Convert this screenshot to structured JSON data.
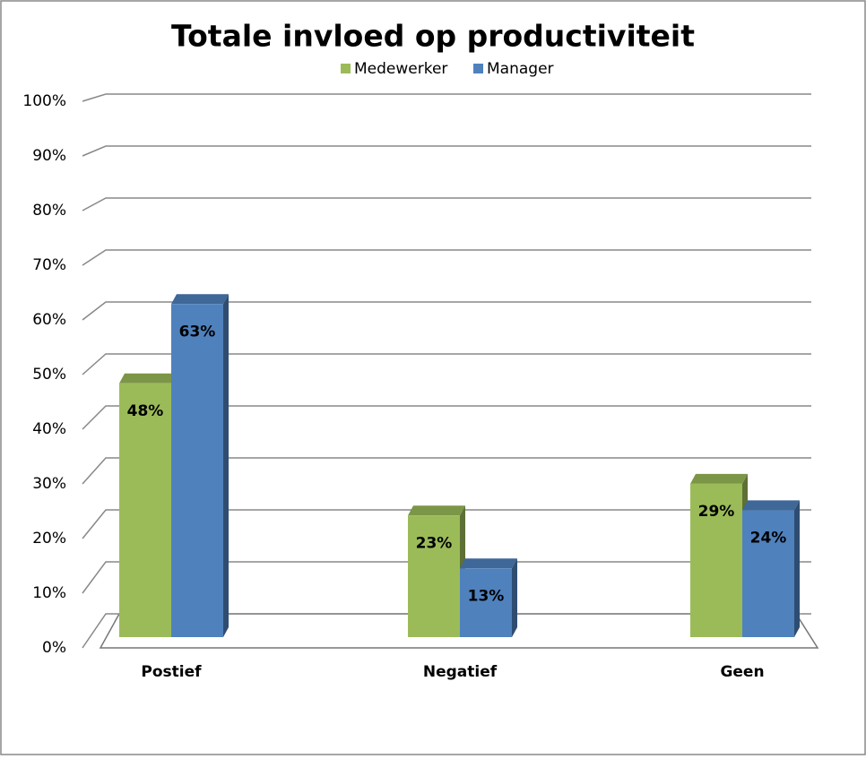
{
  "chart_data": {
    "type": "bar3d",
    "title": "Totale invloed op productiviteit",
    "categories": [
      "Postief",
      "Negatief",
      "Geen"
    ],
    "series": [
      {
        "name": "Medewerker",
        "color": "#9bbb59",
        "values": [
          48,
          23,
          29
        ],
        "value_labels": [
          "48%",
          "23%",
          "29%"
        ]
      },
      {
        "name": "Manager",
        "color": "#4f81bd",
        "values": [
          63,
          13,
          24
        ],
        "value_labels": [
          "63%",
          "13%",
          "24%"
        ]
      }
    ],
    "ylim": [
      0,
      100
    ],
    "yticks": [
      {
        "value": 0,
        "label": "0%"
      },
      {
        "value": 10,
        "label": "10%"
      },
      {
        "value": 20,
        "label": "20%"
      },
      {
        "value": 30,
        "label": "30%"
      },
      {
        "value": 40,
        "label": "40%"
      },
      {
        "value": 50,
        "label": "50%"
      },
      {
        "value": 60,
        "label": "60%"
      },
      {
        "value": 70,
        "label": "70%"
      },
      {
        "value": 80,
        "label": "80%"
      },
      {
        "value": 90,
        "label": "90%"
      },
      {
        "value": 100,
        "label": "100%"
      }
    ],
    "grid": true,
    "legend": "top"
  }
}
